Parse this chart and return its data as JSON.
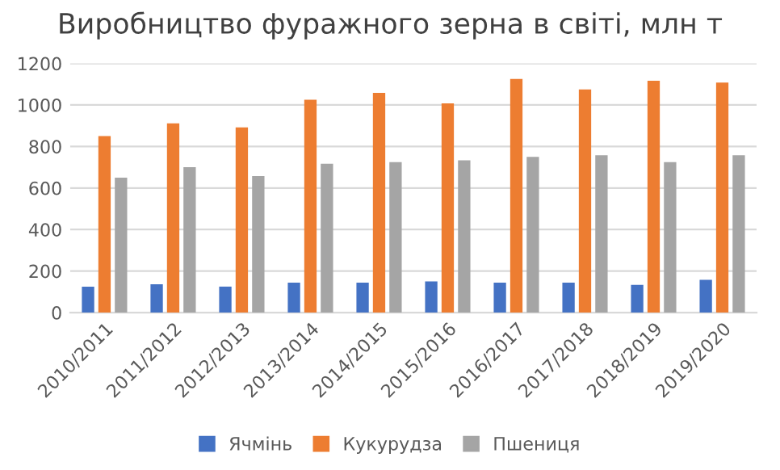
{
  "chart_data": {
    "type": "bar",
    "title": "Виробництво фуражного зерна в світі, млн т",
    "categories": [
      "2010/2011",
      "2011/2012",
      "2012/2013",
      "2013/2014",
      "2014/2015",
      "2015/2016",
      "2016/2017",
      "2017/2018",
      "2018/2019",
      "2019/2020"
    ],
    "series": [
      {
        "name": "Ячмінь",
        "color": "#4472c4",
        "values": [
          125,
          136,
          125,
          144,
          144,
          150,
          144,
          144,
          133,
          158
        ]
      },
      {
        "name": "Кукурудза",
        "color": "#ed7d31",
        "values": [
          850,
          911,
          892,
          1025,
          1058,
          1008,
          1125,
          1075,
          1117,
          1108
        ]
      },
      {
        "name": "Пшениця",
        "color": "#a5a5a5",
        "values": [
          650,
          700,
          658,
          717,
          725,
          733,
          750,
          758,
          725,
          758
        ]
      }
    ],
    "ylim": [
      0,
      1200
    ],
    "yticks": [
      0,
      200,
      400,
      600,
      800,
      1000,
      1200
    ],
    "grid": "y",
    "legend": "bottom"
  }
}
